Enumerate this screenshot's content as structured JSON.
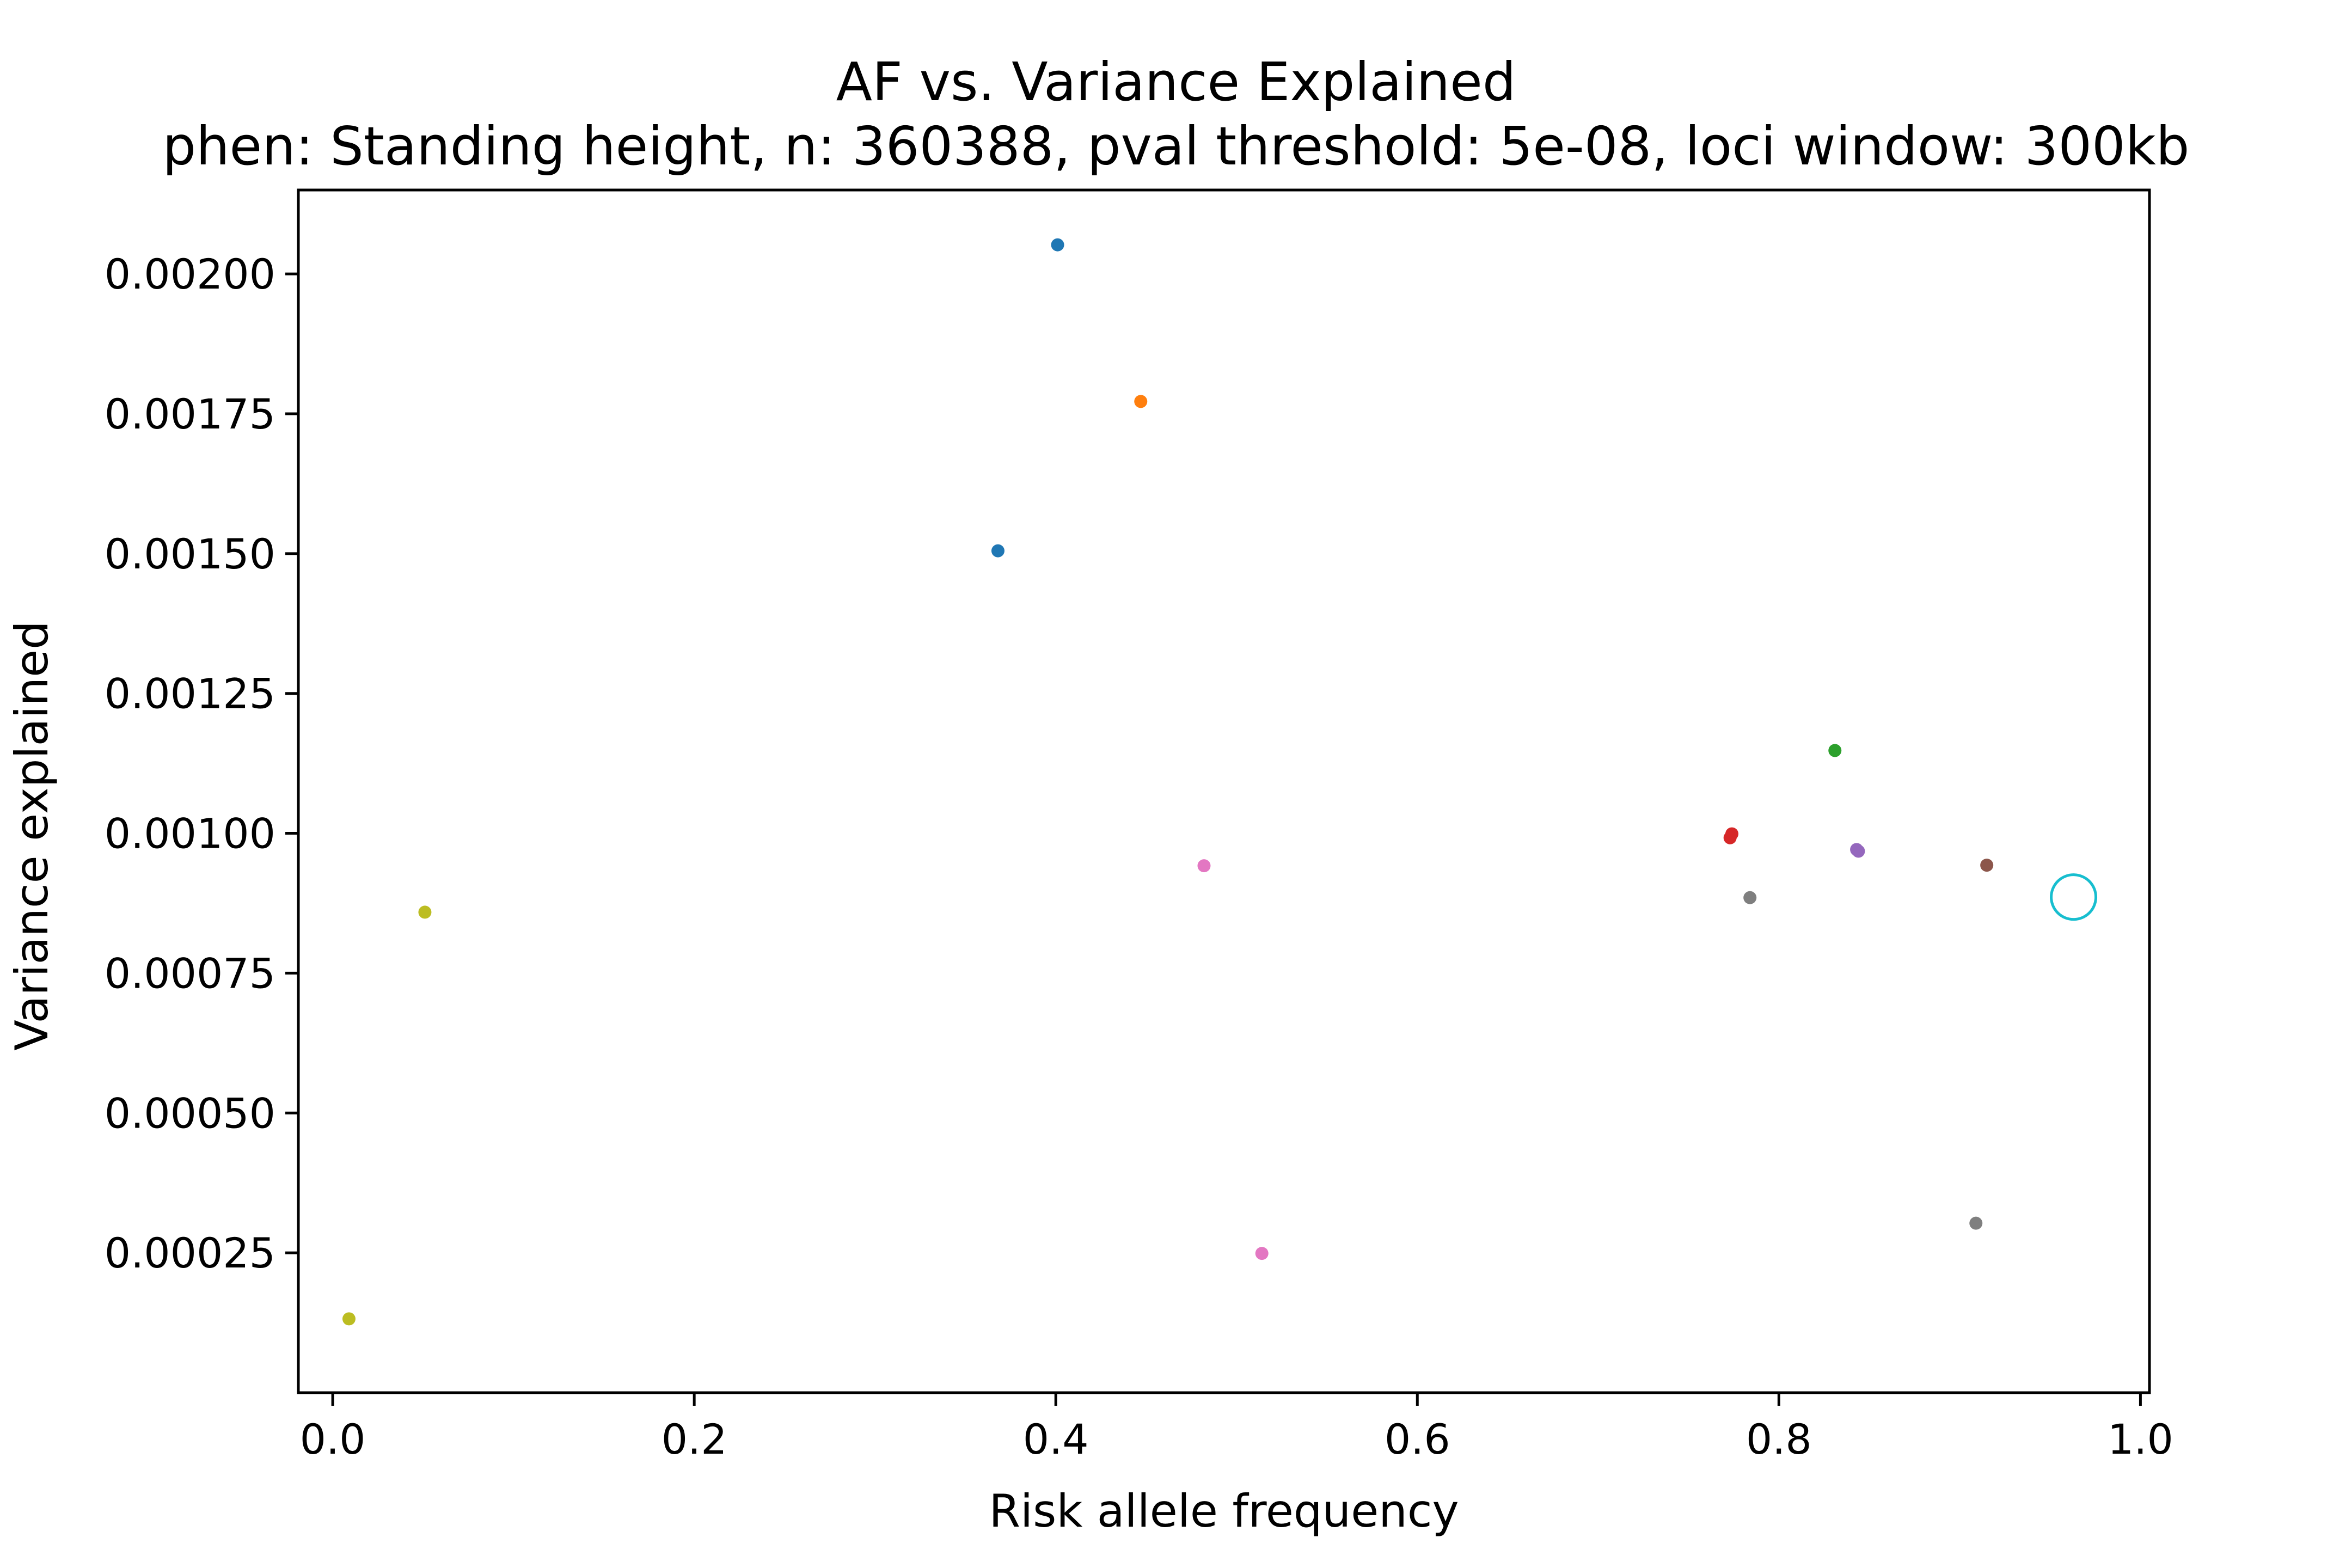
{
  "chart_data": {
    "type": "scatter",
    "title": "AF vs. Variance Explained",
    "subtitle": "phen: Standing height, n: 360388, pval threshold: 5e-08, loci window: 300kb",
    "xlabel": "Risk allele frequency",
    "ylabel": "Variance explained",
    "xlim": [
      -0.019,
      1.005
    ],
    "ylim": [
      0.0,
      0.00215
    ],
    "x_ticks": [
      0.0,
      0.2,
      0.4,
      0.6,
      0.8,
      1.0
    ],
    "x_tick_labels": [
      "0.0",
      "0.2",
      "0.4",
      "0.6",
      "0.8",
      "1.0"
    ],
    "y_ticks": [
      0.00025,
      0.0005,
      0.00075,
      0.001,
      0.00125,
      0.0015,
      0.00175,
      0.002
    ],
    "y_tick_labels": [
      "0.00025",
      "0.00050",
      "0.00075",
      "0.00100",
      "0.00125",
      "0.00150",
      "0.00175",
      "0.00200"
    ],
    "grid": false,
    "points": [
      {
        "x": 0.401,
        "y": 0.002052,
        "color": "#1f77b4",
        "marker": "dot"
      },
      {
        "x": 0.368,
        "y": 0.001505,
        "color": "#1f77b4",
        "marker": "dot"
      },
      {
        "x": 0.447,
        "y": 0.001772,
        "color": "#ff7f0e",
        "marker": "dot"
      },
      {
        "x": 0.831,
        "y": 0.001148,
        "color": "#2ca02c",
        "marker": "dot"
      },
      {
        "x": 0.774,
        "y": 0.000999,
        "color": "#d62728",
        "marker": "dot"
      },
      {
        "x": 0.773,
        "y": 0.000992,
        "color": "#d62728",
        "marker": "dot"
      },
      {
        "x": 0.843,
        "y": 0.000971,
        "color": "#9467bd",
        "marker": "dot"
      },
      {
        "x": 0.844,
        "y": 0.000968,
        "color": "#9467bd",
        "marker": "dot"
      },
      {
        "x": 0.915,
        "y": 0.000943,
        "color": "#8c564b",
        "marker": "dot"
      },
      {
        "x": 0.482,
        "y": 0.000942,
        "color": "#e377c2",
        "marker": "dot"
      },
      {
        "x": 0.514,
        "y": 0.000249,
        "color": "#e377c2",
        "marker": "dot"
      },
      {
        "x": 0.784,
        "y": 0.000885,
        "color": "#7f7f7f",
        "marker": "dot"
      },
      {
        "x": 0.909,
        "y": 0.000303,
        "color": "#7f7f7f",
        "marker": "dot"
      },
      {
        "x": 0.051,
        "y": 0.000859,
        "color": "#bcbd22",
        "marker": "dot"
      },
      {
        "x": 0.009,
        "y": 0.000132,
        "color": "#bcbd22",
        "marker": "dot"
      },
      {
        "x": 0.963,
        "y": 0.000886,
        "color": "#17becf",
        "marker": "open-circle"
      }
    ]
  }
}
